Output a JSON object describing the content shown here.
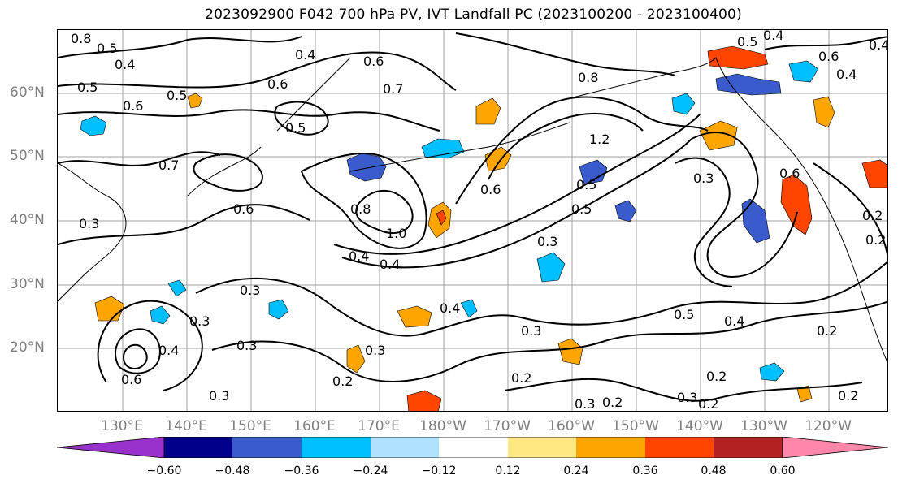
{
  "title": "2023092900 F042 700 hPa PV, IVT Landfall PC (2023100200 - 2023100400)",
  "latitude_labels": [
    "60°N",
    "50°N",
    "40°N",
    "30°N",
    "20°N"
  ],
  "longitude_labels": [
    "130°E",
    "140°E",
    "150°E",
    "160°E",
    "170°E",
    "180°W",
    "170°W",
    "160°W",
    "150°W",
    "140°W",
    "130°W",
    "120°W"
  ],
  "colorbar": {
    "ticks": [
      "−0.60",
      "−0.48",
      "−0.36",
      "−0.24",
      "−0.12",
      "0.12",
      "0.24",
      "0.36",
      "0.48",
      "0.60"
    ],
    "colors": [
      "#9932cc",
      "#00008b",
      "#3a5bcc",
      "#00bfff",
      "#b0e2ff",
      "#ffffff",
      "#ffe882",
      "#ffa500",
      "#ff4500",
      "#b22222",
      "#ff88aa"
    ]
  },
  "contour_labels": [
    "0.8",
    "0.5",
    "0.4",
    "0.5",
    "0.6",
    "0.5",
    "0.6",
    "0.4",
    "0.7",
    "0.6",
    "0.5",
    "0.7",
    "0.8",
    "1.2",
    "0.5",
    "0.4",
    "0.6",
    "0.3",
    "0.5",
    "0.4",
    "0.6",
    "0.5",
    "0.8",
    "1.0",
    "0.4",
    "0.4",
    "0.6",
    "0.3",
    "0.3",
    "0.4",
    "0.3",
    "0.5",
    "0.4",
    "0.2",
    "0.3",
    "0.3",
    "0.2",
    "0.2",
    "0.3",
    "0.2",
    "0.3",
    "0.2",
    "0.2",
    "0.3",
    "0.2",
    "0.2",
    "0.6",
    "0.2",
    "0.4",
    "0.6",
    "0.4",
    "0.3",
    "0.3"
  ]
}
